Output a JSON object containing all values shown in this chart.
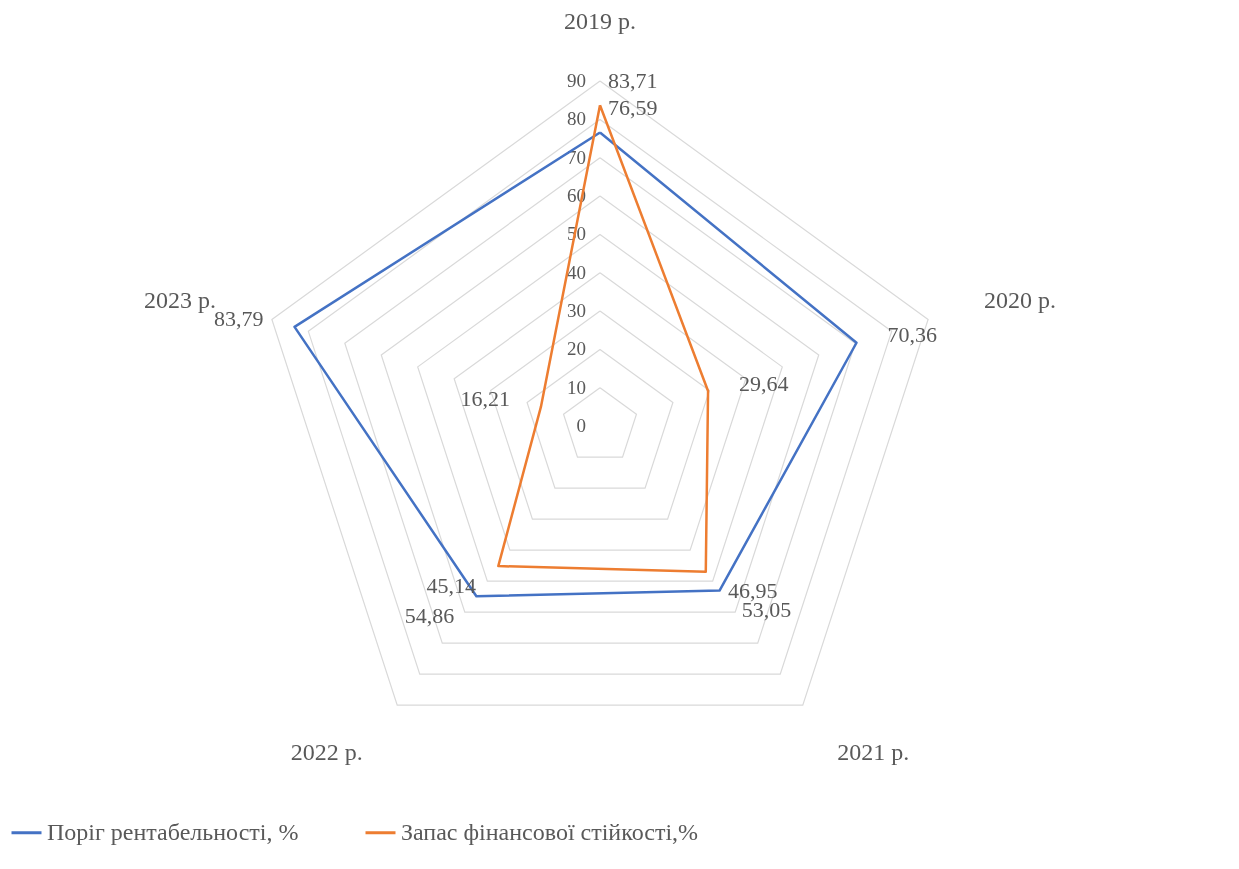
{
  "chart_data": {
    "type": "radar",
    "categories": [
      "2019 р.",
      "2020 р.",
      "2021 р.",
      "2022 р.",
      "2023 р."
    ],
    "series": [
      {
        "name": "Поріг рентабельності, %",
        "color": "#4472c4",
        "values": [
          76.59,
          70.36,
          53.05,
          54.86,
          83.79
        ],
        "value_labels": [
          "76,59",
          "70,36",
          "53,05",
          "54,86",
          "83,79"
        ]
      },
      {
        "name": "Запас фінансової стійкості,%",
        "color": "#ed7d31",
        "values": [
          83.71,
          29.64,
          46.95,
          45.14,
          16.21
        ],
        "value_labels": [
          "83,71",
          "29,64",
          "46,95",
          "45,14",
          "16,21"
        ]
      }
    ],
    "ylim": [
      0,
      90
    ],
    "yticks": [
      0,
      10,
      20,
      30,
      40,
      50,
      60,
      70,
      80,
      90
    ],
    "grid": true,
    "legend": "bottom"
  }
}
